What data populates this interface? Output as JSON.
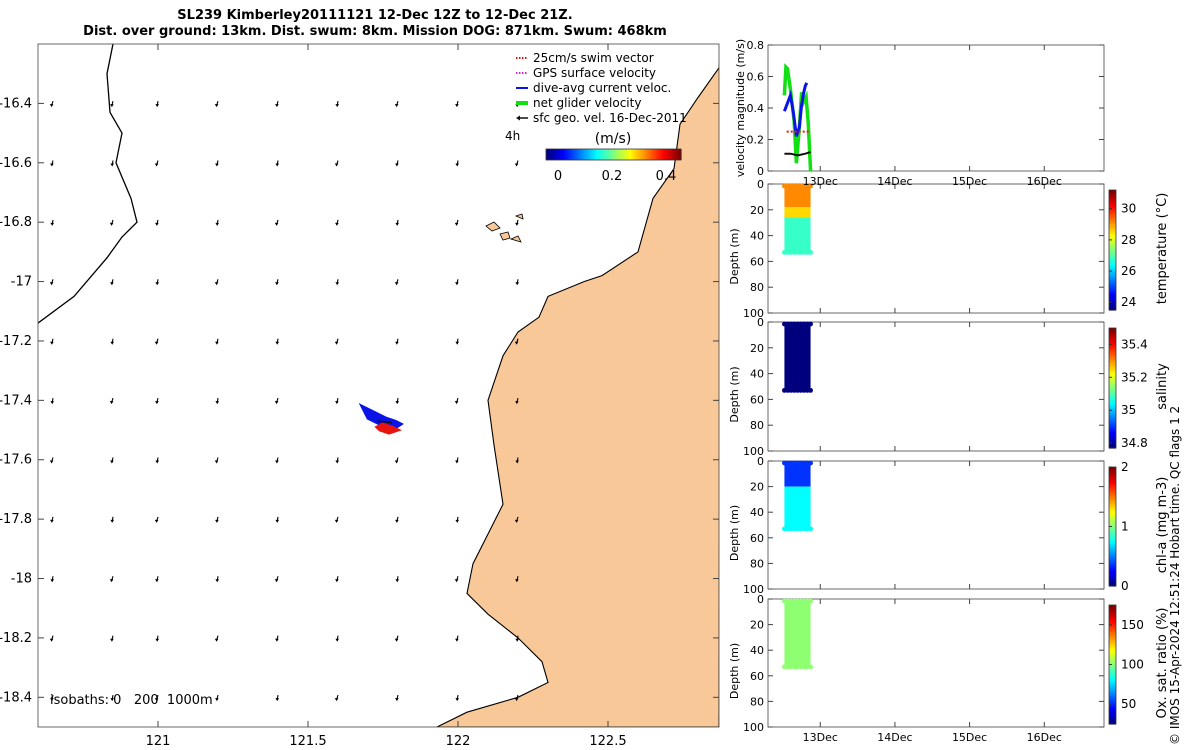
{
  "title": {
    "line1": "SL239 Kimberley20111121 12-Dec 12Z to 12-Dec 21Z.",
    "line2": "Dist. over ground: 13km. Dist. swum: 8km. Mission DOG: 871km. Swum: 468km"
  },
  "footer_note": "© IMOS 15-Apr-2024 12:51:24 Hobart time. QC flags 1  2",
  "colors": {
    "land": "#f9c898",
    "swim_vector": "#e8140f",
    "gps_velocity": "#e020e0",
    "dive_avg": "#0a14e6",
    "net_glider": "#12e012",
    "sfc_geo": "#111111",
    "sea_colormap": [
      "#00007f",
      "#0000ff",
      "#007fff",
      "#00ffff",
      "#7fff7f",
      "#ffff00",
      "#ff7f00",
      "#ff0000",
      "#7f0000"
    ]
  },
  "chart_data": [
    {
      "type": "map",
      "id": "glider-track-map",
      "xlim": [
        120.6,
        122.87
      ],
      "ylim": [
        -18.5,
        -16.2
      ],
      "x_ticks": [
        121,
        121.5,
        122,
        122.5
      ],
      "x_tick_labels": [
        "121",
        "121.5",
        "122",
        "122.5"
      ],
      "y_ticks": [
        -16.4,
        -16.6,
        -16.8,
        -17,
        -17.2,
        -17.4,
        -17.6,
        -17.8,
        -18,
        -18.2,
        -18.4
      ],
      "y_tick_labels": [
        "-16.4",
        "-16.6",
        "-16.8",
        "-17",
        "-17.2",
        "-17.4",
        "-17.6",
        "-17.8",
        "-18",
        "-18.2",
        "-18.4"
      ],
      "legend": {
        "placement": "top-right",
        "entries": [
          {
            "label": "25cm/s swim vector",
            "color": "#e8140f",
            "style": "dotted"
          },
          {
            "label": "GPS surface velocity",
            "color": "#e020e0",
            "style": "dotted"
          },
          {
            "label": "dive-avg current veloc.",
            "color": "#0a14e6",
            "style": "solid"
          },
          {
            "label": "net glider velocity",
            "color": "#12e012",
            "style": "thick"
          },
          {
            "label": "sfc geo. vel. 16-Dec-2011",
            "color": "#111111",
            "style": "arrow"
          }
        ]
      },
      "time_marker": "4h",
      "colorbar": {
        "label": "(m/s)",
        "ticks": [
          0,
          0.2,
          0.4
        ],
        "tick_labels": [
          "0",
          "0.2",
          "0.4"
        ],
        "range": [
          0,
          0.5
        ]
      },
      "isobaths_text": "isobaths: 0   200  1000m",
      "isobath_line": [
        [
          120.6,
          -17.14
        ],
        [
          120.72,
          -17.05
        ],
        [
          120.83,
          -16.92
        ],
        [
          120.88,
          -16.85
        ],
        [
          120.93,
          -16.8
        ],
        [
          120.91,
          -16.72
        ],
        [
          120.86,
          -16.6
        ],
        [
          120.88,
          -16.5
        ],
        [
          120.84,
          -16.43
        ],
        [
          120.83,
          -16.3
        ],
        [
          120.85,
          -16.2
        ]
      ],
      "coastline": [
        [
          122.87,
          -16.28
        ],
        [
          122.8,
          -16.38
        ],
        [
          122.74,
          -16.47
        ],
        [
          122.72,
          -16.62
        ],
        [
          122.65,
          -16.72
        ],
        [
          122.6,
          -16.9
        ],
        [
          122.48,
          -16.98
        ],
        [
          122.42,
          -17.0
        ],
        [
          122.3,
          -17.05
        ],
        [
          122.27,
          -17.12
        ],
        [
          122.2,
          -17.17
        ],
        [
          122.15,
          -17.25
        ],
        [
          122.1,
          -17.4
        ],
        [
          122.12,
          -17.55
        ],
        [
          122.15,
          -17.75
        ],
        [
          122.1,
          -17.85
        ],
        [
          122.05,
          -17.95
        ],
        [
          122.03,
          -18.05
        ],
        [
          122.1,
          -18.12
        ],
        [
          122.2,
          -18.2
        ],
        [
          122.28,
          -18.28
        ],
        [
          122.3,
          -18.35
        ],
        [
          122.2,
          -18.4
        ],
        [
          122.03,
          -18.45
        ],
        [
          121.93,
          -18.5
        ],
        [
          122.87,
          -18.5
        ]
      ],
      "current_field": {
        "lons": [
          120.65,
          120.85,
          121.0,
          121.2,
          121.4,
          121.6,
          121.8,
          122.0,
          122.2
        ],
        "lats": [
          -16.4,
          -16.6,
          -16.8,
          -17.0,
          -17.2,
          -17.4,
          -17.6,
          -17.8,
          -18.0,
          -18.2,
          -18.4
        ],
        "u": -0.01,
        "v": -0.03
      },
      "dive_avg_track": [
        [
          121.68,
          -17.42
        ],
        [
          121.72,
          -17.44
        ],
        [
          121.76,
          -17.46
        ],
        [
          121.79,
          -17.47
        ],
        [
          121.81,
          -17.48
        ],
        [
          121.78,
          -17.5
        ],
        [
          121.74,
          -17.48
        ],
        [
          121.7,
          -17.46
        ]
      ],
      "swim_track": [
        [
          121.73,
          -17.49
        ],
        [
          121.75,
          -17.48
        ],
        [
          121.78,
          -17.49
        ],
        [
          121.8,
          -17.5
        ],
        [
          121.77,
          -17.51
        ],
        [
          121.74,
          -17.5
        ]
      ]
    },
    {
      "type": "line",
      "id": "velocity-panel",
      "ylabel": "velocity magnitude (m/s)",
      "ylim": [
        0,
        0.8
      ],
      "y_ticks": [
        0,
        0.2,
        0.4,
        0.6,
        0.8
      ],
      "y_tick_labels": [
        "0",
        "0.2",
        "0.4",
        "0.6",
        "0.8"
      ],
      "xlim": [
        12.3,
        16.8
      ],
      "x_ticks": [
        13,
        14,
        15,
        16
      ],
      "x_tick_labels": [
        "13Dec",
        "14Dec",
        "15Dec",
        "16Dec"
      ],
      "series": [
        {
          "color": "#12e012",
          "x": [
            12.52,
            12.54,
            12.56,
            12.6,
            12.65,
            12.68,
            12.72,
            12.75,
            12.78,
            12.81,
            12.84,
            12.86,
            12.87
          ],
          "y": [
            0.48,
            0.66,
            0.65,
            0.52,
            0.32,
            0.05,
            0.28,
            0.5,
            0.44,
            0.47,
            0.3,
            0.1,
            0.0
          ]
        },
        {
          "color": "#0a14e6",
          "x": [
            12.52,
            12.56,
            12.6,
            12.64,
            12.68,
            12.72,
            12.75,
            12.78,
            12.8,
            12.82
          ],
          "y": [
            0.38,
            0.43,
            0.48,
            0.37,
            0.22,
            0.28,
            0.42,
            0.5,
            0.54,
            0.56
          ]
        },
        {
          "color": "#111111",
          "x": [
            12.52,
            12.6,
            12.7,
            12.8,
            12.87
          ],
          "y": [
            0.11,
            0.11,
            0.1,
            0.11,
            0.12
          ]
        },
        {
          "color": "#e8140f",
          "x": [
            12.55,
            12.6,
            12.65,
            12.75,
            12.8,
            12.85
          ],
          "y": [
            0.25,
            0.25,
            0.25,
            0.25,
            0.25,
            0.25
          ]
        }
      ]
    },
    {
      "type": "scatter",
      "id": "temperature-panel",
      "ylabel": "Depth (m)",
      "ylim": [
        0,
        100
      ],
      "y_ticks": [
        0,
        20,
        40,
        60,
        80,
        100
      ],
      "y_tick_labels": [
        "0",
        "20",
        "40",
        "60",
        "80",
        "100"
      ],
      "xlim": [
        12.3,
        16.8
      ],
      "x_range": [
        12.52,
        12.87
      ],
      "max_depth": 53,
      "layers": [
        {
          "from": 0,
          "to": 18,
          "value": 29.2
        },
        {
          "from": 18,
          "to": 26,
          "value": 28.6
        },
        {
          "from": 26,
          "to": 53,
          "value": 26.8
        }
      ],
      "colorbar": {
        "label": "temperature (°C)",
        "range": [
          23.5,
          31.2
        ],
        "ticks": [
          24,
          26,
          28,
          30
        ],
        "tick_labels": [
          "24",
          "26",
          "28",
          "30"
        ]
      }
    },
    {
      "type": "scatter",
      "id": "salinity-panel",
      "ylabel": "Depth (m)",
      "ylim": [
        0,
        100
      ],
      "y_ticks": [
        0,
        20,
        40,
        60,
        80,
        100
      ],
      "y_tick_labels": [
        "0",
        "20",
        "40",
        "60",
        "80",
        "100"
      ],
      "xlim": [
        12.3,
        16.8
      ],
      "x_range": [
        12.52,
        12.87
      ],
      "max_depth": 53,
      "layers": [
        {
          "from": 0,
          "to": 53,
          "value": 34.77
        }
      ],
      "colorbar": {
        "label": "salinity",
        "range": [
          34.77,
          35.5
        ],
        "ticks": [
          34.8,
          35,
          35.2,
          35.4
        ],
        "tick_labels": [
          "34.8",
          "35",
          "35.2",
          "35.4"
        ]
      }
    },
    {
      "type": "scatter",
      "id": "chla-panel",
      "ylabel": "Depth (m)",
      "ylim": [
        0,
        100
      ],
      "y_ticks": [
        0,
        20,
        40,
        60,
        80,
        100
      ],
      "y_tick_labels": [
        "0",
        "20",
        "40",
        "60",
        "80",
        "100"
      ],
      "xlim": [
        12.3,
        16.8
      ],
      "x_range": [
        12.52,
        12.87
      ],
      "max_depth": 53,
      "layers": [
        {
          "from": 0,
          "to": 20,
          "value": 0.35
        },
        {
          "from": 20,
          "to": 53,
          "value": 0.75
        }
      ],
      "colorbar": {
        "label": "chl-a (mg m-3)",
        "range": [
          0,
          2
        ],
        "ticks": [
          0,
          1,
          2
        ],
        "tick_labels": [
          "0",
          "1",
          "2"
        ]
      }
    },
    {
      "type": "scatter",
      "id": "oxygen-panel",
      "ylabel": "Depth (m)",
      "ylim": [
        0,
        100
      ],
      "y_ticks": [
        0,
        20,
        40,
        60,
        80,
        100
      ],
      "y_tick_labels": [
        "0",
        "20",
        "40",
        "60",
        "80",
        "100"
      ],
      "xlim": [
        12.3,
        16.8
      ],
      "x_ticks": [
        13,
        14,
        15,
        16
      ],
      "x_tick_labels": [
        "13Dec",
        "14Dec",
        "15Dec",
        "16Dec"
      ],
      "x_range": [
        12.52,
        12.87
      ],
      "max_depth": 53,
      "layers": [
        {
          "from": 0,
          "to": 53,
          "value": 102
        }
      ],
      "colorbar": {
        "label": "Ox. sat. ratio (%)",
        "range": [
          25,
          175
        ],
        "ticks": [
          50,
          100,
          150
        ],
        "tick_labels": [
          "50",
          "100",
          "150"
        ]
      }
    }
  ]
}
